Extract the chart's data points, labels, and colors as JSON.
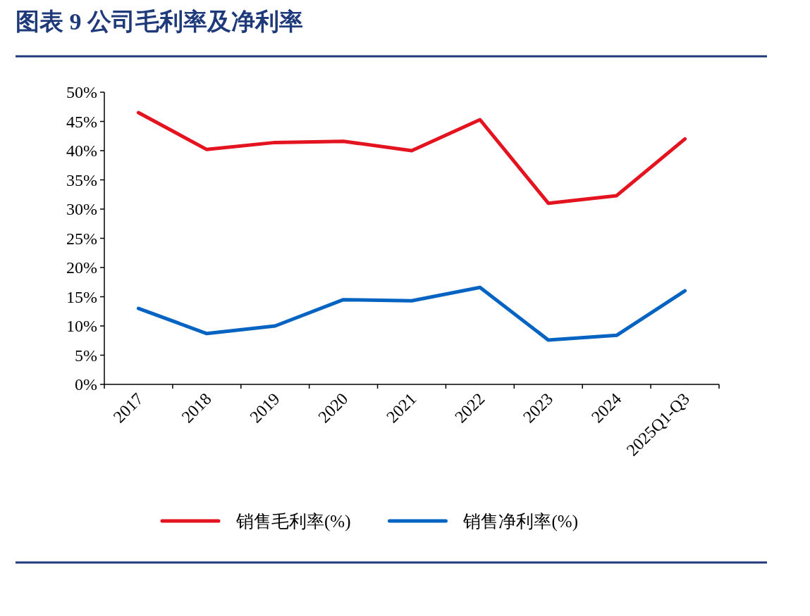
{
  "chart_data": {
    "type": "line",
    "title": "图表 9 公司毛利率及净利率",
    "categories": [
      "2017",
      "2018",
      "2019",
      "2020",
      "2021",
      "2022",
      "2023",
      "2024",
      "2025Q1-Q3"
    ],
    "series": [
      {
        "name": "销售毛利率(%)",
        "color": "#e3141f",
        "values": [
          46.5,
          40.2,
          41.4,
          41.6,
          40.0,
          45.3,
          31.0,
          32.3,
          42.0
        ]
      },
      {
        "name": "销售净利率(%)",
        "color": "#0563c1",
        "values": [
          13.0,
          8.7,
          10.0,
          14.5,
          14.3,
          16.6,
          7.6,
          8.4,
          16.0
        ]
      }
    ],
    "ylim": [
      0,
      50
    ],
    "yticks": [
      {
        "value": 0,
        "label": "0%"
      },
      {
        "value": 5,
        "label": "5%"
      },
      {
        "value": 10,
        "label": "10%"
      },
      {
        "value": 15,
        "label": "15%"
      },
      {
        "value": 20,
        "label": "20%"
      },
      {
        "value": 25,
        "label": "25%"
      },
      {
        "value": 30,
        "label": "30%"
      },
      {
        "value": 35,
        "label": "35%"
      },
      {
        "value": 40,
        "label": "40%"
      },
      {
        "value": 45,
        "label": "45%"
      },
      {
        "value": 50,
        "label": "50%"
      }
    ],
    "legend": "bottom",
    "line_style": "solid"
  }
}
